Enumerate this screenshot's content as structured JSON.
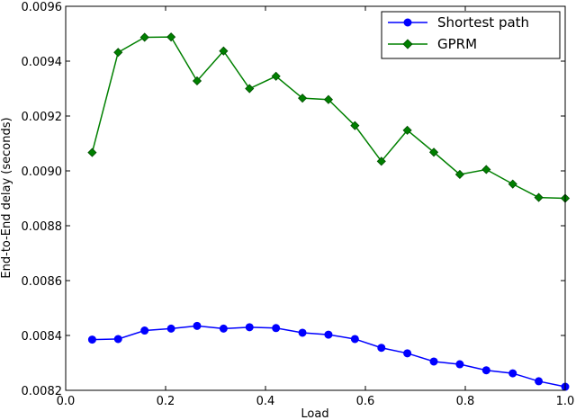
{
  "chart_data": {
    "type": "line",
    "xlabel": "Load",
    "ylabel": "End-to-End delay (seconds)",
    "xlim": [
      0.0,
      1.0
    ],
    "ylim": [
      0.0082,
      0.0096
    ],
    "xticks": [
      "0.0",
      "0.2",
      "0.4",
      "0.6",
      "0.8",
      "1.0"
    ],
    "yticks": [
      "0.0082",
      "0.0084",
      "0.0086",
      "0.0088",
      "0.0090",
      "0.0092",
      "0.0094",
      "0.0096"
    ],
    "grid": false,
    "legend_position": "top-right",
    "x": [
      0.053,
      0.105,
      0.158,
      0.211,
      0.263,
      0.316,
      0.368,
      0.421,
      0.474,
      0.526,
      0.579,
      0.632,
      0.684,
      0.737,
      0.789,
      0.842,
      0.895,
      0.947,
      1.0
    ],
    "series": [
      {
        "name": "Shortest path",
        "color": "#0000ff",
        "marker": "circle",
        "values": [
          0.008385,
          0.008387,
          0.008418,
          0.008425,
          0.008435,
          0.008425,
          0.00843,
          0.008427,
          0.00841,
          0.008403,
          0.008387,
          0.008355,
          0.008335,
          0.008305,
          0.008295,
          0.008273,
          0.008262,
          0.008233,
          0.008213
        ]
      },
      {
        "name": "GPRM",
        "color": "#008000",
        "marker": "diamond",
        "values": [
          0.009067,
          0.009432,
          0.009487,
          0.009488,
          0.009328,
          0.009437,
          0.0093,
          0.009345,
          0.009265,
          0.00926,
          0.009165,
          0.009035,
          0.009148,
          0.009068,
          0.008987,
          0.009005,
          0.008952,
          0.008903,
          0.0089
        ]
      }
    ]
  }
}
